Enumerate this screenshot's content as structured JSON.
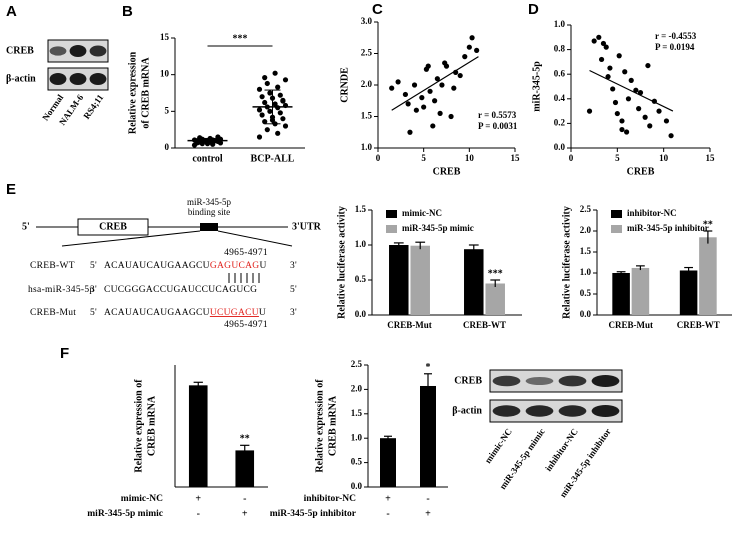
{
  "panel_labels": [
    "A",
    "B",
    "C",
    "D",
    "E",
    "F"
  ],
  "blots": [
    {
      "rows": [
        "CREB",
        "β-actin"
      ],
      "lanes": [
        "Normal",
        "NALM-6",
        "RS4;11"
      ]
    },
    {
      "rows": [
        "CREB",
        "β-actin"
      ],
      "lanes": [
        "mimic-NC",
        "miR-345-5p mimic",
        "inhibitor-NC",
        "miR-345-5p inhibitor"
      ]
    }
  ],
  "diagram": {
    "five_prime": "5'",
    "gene": "CREB",
    "site": [
      "miR-345-5p",
      "binding site"
    ],
    "utr": "3'UTR",
    "position_top": "4965-4971",
    "position_bottom": "4965-4971",
    "rows": [
      {
        "name": "CREB-WT",
        "left": "5'",
        "seq": [
          "ACAUAUCAUGAAGCU",
          "GAGUCAG",
          "U"
        ],
        "right": "3'"
      },
      {
        "name": "hsa-miR-345-5p",
        "left": "3'",
        "seq": [
          "CUCGGGACCUGAUCCUCAGUCG"
        ],
        "right": "5'"
      },
      {
        "name": "CREB-Mut",
        "left": "5'",
        "seq": [
          "ACAUAUCAUGAAGCU",
          "UCUGACU",
          "U"
        ],
        "right": "3'"
      }
    ]
  },
  "chart_data": [
    {
      "type": "dotplot",
      "ylabel": [
        "Relative expression",
        "of CREB mRNA"
      ],
      "ylim": [
        0,
        15
      ],
      "yticks": [
        0,
        5,
        10,
        15
      ],
      "color": "#000000",
      "significance": "***",
      "groups": [
        {
          "name": "control",
          "values": [
            0.4,
            0.5,
            0.6,
            0.7,
            0.8,
            0.8,
            0.9,
            0.9,
            1.0,
            1.0,
            1.0,
            1.1,
            1.1,
            1.2,
            1.2,
            1.3,
            1.4,
            1.5,
            0.6,
            0.7
          ],
          "mean": 1.0,
          "sd": 0.3
        },
        {
          "name": "BCP-ALL",
          "values": [
            1.5,
            2.0,
            2.5,
            3.0,
            3.3,
            3.6,
            4.0,
            4.2,
            4.5,
            4.8,
            5.0,
            5.2,
            5.5,
            5.6,
            5.8,
            6.0,
            6.2,
            6.5,
            6.8,
            7.0,
            7.2,
            7.5,
            8.0,
            8.3,
            8.8,
            9.3,
            10.2,
            9.6,
            6.4,
            3.8
          ],
          "mean": 5.6,
          "sd": 2.3
        }
      ]
    },
    {
      "type": "scatter",
      "ylabel": "CRNDE",
      "xlabel": "CREB",
      "color": "#000000",
      "xlim": [
        0,
        15
      ],
      "xticks": [
        0,
        5,
        10,
        15
      ],
      "ylim": [
        1.0,
        3.0
      ],
      "yticks": [
        {
          "value": 1.0,
          "label": "1.0"
        },
        1.5,
        {
          "value": 2.0,
          "label": "2.0"
        },
        2.5,
        {
          "value": 3.0,
          "label": "3.0"
        }
      ],
      "x": [
        1.5,
        2.2,
        3.0,
        3.3,
        3.5,
        4.0,
        4.2,
        4.8,
        5.0,
        5.3,
        5.5,
        5.7,
        6.0,
        6.2,
        6.5,
        6.8,
        7.0,
        7.3,
        7.5,
        8.0,
        8.3,
        8.5,
        9.0,
        9.5,
        10.0,
        10.3,
        10.8
      ],
      "values": [
        1.95,
        2.05,
        1.85,
        1.7,
        1.25,
        2.0,
        1.6,
        1.8,
        1.65,
        2.25,
        2.3,
        1.9,
        1.35,
        1.75,
        2.1,
        1.55,
        2.0,
        2.35,
        2.3,
        1.5,
        1.95,
        2.2,
        2.15,
        2.45,
        2.6,
        2.75,
        2.55
      ],
      "fit": {
        "x": [
          1.5,
          11
        ],
        "y": [
          1.6,
          2.45
        ]
      },
      "annotations": [
        "r = 0.5573",
        "P = 0.0031"
      ]
    },
    {
      "type": "scatter",
      "ylabel": "miR-345-5p",
      "xlabel": "CREB",
      "color": "#000000",
      "xlim": [
        0,
        15
      ],
      "xticks": [
        0,
        5,
        10,
        15
      ],
      "ylim": [
        0,
        1.0
      ],
      "yticks": [
        {
          "value": 0,
          "label": "0.0"
        },
        0.2,
        0.4,
        0.6,
        0.8,
        {
          "value": 1.0,
          "label": "1.0"
        }
      ],
      "x": [
        2.0,
        2.5,
        3.0,
        3.3,
        3.5,
        3.8,
        4.0,
        4.2,
        4.5,
        4.8,
        5.0,
        5.2,
        5.5,
        5.5,
        5.8,
        6.0,
        6.2,
        6.5,
        7.0,
        7.3,
        7.5,
        8.0,
        8.3,
        8.5,
        9.0,
        9.5,
        10.3,
        10.8
      ],
      "values": [
        0.3,
        0.87,
        0.9,
        0.72,
        0.85,
        0.82,
        0.58,
        0.65,
        0.48,
        0.37,
        0.28,
        0.75,
        0.22,
        0.15,
        0.62,
        0.13,
        0.4,
        0.55,
        0.47,
        0.32,
        0.45,
        0.25,
        0.67,
        0.18,
        0.38,
        0.3,
        0.22,
        0.1
      ],
      "fit": {
        "x": [
          2,
          11
        ],
        "y": [
          0.63,
          0.3
        ]
      },
      "annotations": [
        "r = -0.4553",
        "P = 0.0194"
      ]
    },
    {
      "type": "bar",
      "ylabel": "Relative luciferase activity",
      "categories": [
        "CREB-Mut",
        "CREB-WT"
      ],
      "ylim": [
        0,
        1.5
      ],
      "yticks": [
        {
          "value": 0,
          "label": "0.0"
        },
        0.5,
        {
          "value": 1.0,
          "label": "1.0"
        },
        1.5
      ],
      "series": [
        {
          "name": "mimic-NC",
          "color": "#000000",
          "values": [
            1.0,
            0.94
          ],
          "errors": [
            0.03,
            0.06
          ]
        },
        {
          "name": "miR-345-5p mimic",
          "color": "#a6a6a6",
          "values": [
            0.99,
            0.45
          ],
          "errors": [
            0.05,
            0.05
          ]
        }
      ],
      "significance": [
        {
          "label": "***",
          "series": 1,
          "index": 1
        }
      ]
    },
    {
      "type": "bar",
      "ylabel": "Relative luciferase activity",
      "categories": [
        "CREB-Mut",
        "CREB-WT"
      ],
      "ylim": [
        0,
        2.5
      ],
      "yticks": [
        {
          "value": 0,
          "label": "0.0"
        },
        0.5,
        {
          "value": 1.0,
          "label": "1.0"
        },
        1.5,
        {
          "value": 2.0,
          "label": "2.0"
        },
        2.5
      ],
      "series": [
        {
          "name": "inhibitor-NC",
          "color": "#000000",
          "values": [
            1.0,
            1.06
          ],
          "errors": [
            0.03,
            0.07
          ]
        },
        {
          "name": "miR-345-5p inhibitor",
          "color": "#a6a6a6",
          "values": [
            1.12,
            1.85
          ],
          "errors": [
            0.05,
            0.15
          ]
        }
      ],
      "significance": [
        {
          "label": "**",
          "series": 1,
          "index": 1
        }
      ]
    },
    {
      "type": "bar",
      "ylabel": [
        "Relative expression of",
        "CREB mRNA"
      ],
      "ylim": [
        0,
        1.2
      ],
      "series": [
        {
          "color": "#000000",
          "values": [
            1.0,
            0.36
          ],
          "errors": [
            0.03,
            0.05
          ]
        }
      ],
      "significance": [
        {
          "label": "**",
          "series": 0,
          "index": 1
        }
      ],
      "conditions": [
        {
          "name": "mimic-NC",
          "signs": [
            "+",
            "-"
          ]
        },
        {
          "name": "miR-345-5p mimic",
          "signs": [
            "-",
            "+"
          ]
        }
      ]
    },
    {
      "type": "bar",
      "ylabel": [
        "Relative expression of",
        "CREB mRNA"
      ],
      "ylim": [
        0,
        2.5
      ],
      "yticks": [
        {
          "value": 0,
          "label": "0.0"
        },
        0.5,
        {
          "value": 1.0,
          "label": "1.0"
        },
        1.5,
        {
          "value": 2.0,
          "label": "2.0"
        },
        2.5
      ],
      "series": [
        {
          "color": "#000000",
          "values": [
            1.0,
            2.07
          ],
          "errors": [
            0.04,
            0.25
          ]
        }
      ],
      "significance": [
        {
          "label": "*",
          "series": 0,
          "index": 1
        }
      ],
      "conditions": [
        {
          "name": "inhibitor-NC",
          "signs": [
            "+",
            "-"
          ]
        },
        {
          "name": "miR-345-5p inhibitor",
          "signs": [
            "-",
            "+"
          ]
        }
      ]
    }
  ]
}
